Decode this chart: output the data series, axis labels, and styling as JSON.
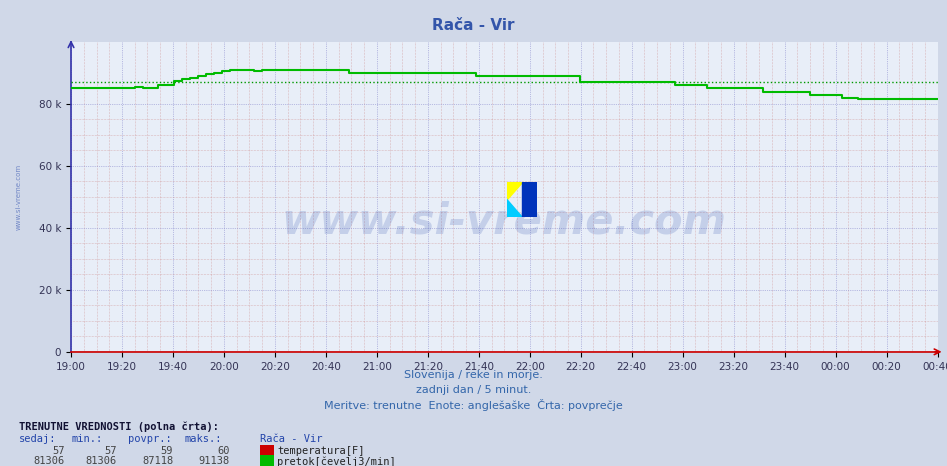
{
  "title": "Rača - Vir",
  "title_color": "#3355aa",
  "title_fontsize": 11,
  "bg_color": "#d0d8e8",
  "plot_bg_color": "#e8eef8",
  "ylabel": "",
  "xlabel_line1": "Slovenija / reke in morje.",
  "xlabel_line2": "zadnji dan / 5 minut.",
  "xlabel_line3": "Meritve: trenutne  Enote: anglešaške  Črta: povprečje",
  "xlabel_color": "#3366aa",
  "xlabel_fontsize": 8,
  "yticks": [
    0,
    20000,
    40000,
    60000,
    80000
  ],
  "ytick_labels": [
    "0",
    "20 k",
    "40 k",
    "60 k",
    "80 k"
  ],
  "ymax": 100000,
  "xtick_labels": [
    "19:00",
    "19:20",
    "19:40",
    "20:00",
    "20:20",
    "20:40",
    "21:00",
    "21:20",
    "21:40",
    "22:00",
    "22:20",
    "22:40",
    "23:00",
    "23:20",
    "23:40",
    "00:00",
    "00:20",
    "00:40"
  ],
  "flow_color": "#00bb00",
  "flow_avg": 87118,
  "flow_avg_color": "#009900",
  "temp_color": "#cc0000",
  "watermark": "www.si-vreme.com",
  "watermark_color": "#2244aa",
  "watermark_fontsize": 30,
  "watermark_alpha": 0.18,
  "bottom_title": "TRENUTNE VREDNOSTI (polna črta):",
  "col_headers": [
    "sedaj:",
    "min.:",
    "povpr.:",
    "maks.:",
    "Rača - Vir"
  ],
  "row1": [
    "57",
    "57",
    "59",
    "60",
    "temperatura[F]"
  ],
  "row1_color": "#cc0000",
  "row2": [
    "81306",
    "81306",
    "87118",
    "91138",
    "pretok[čevelj3/min]"
  ],
  "row2_color": "#00bb00",
  "flow_data_y": [
    85000,
    85000,
    85000,
    85200,
    85200,
    85000,
    85000,
    85200,
    85400,
    85200,
    85000,
    86000,
    86000,
    87500,
    88000,
    88500,
    89000,
    89500,
    90000,
    90500,
    91000,
    91000,
    90800,
    90500,
    91000,
    91000,
    91000,
    91000,
    91000,
    91000,
    91000,
    91000,
    91000,
    91000,
    91000,
    90000,
    90000,
    90000,
    90000,
    90000,
    90000,
    90000,
    90000,
    90000,
    90000,
    90000,
    90000,
    90000,
    90000,
    90000,
    90000,
    89000,
    89000,
    89000,
    89000,
    89000,
    89000,
    89000,
    89000,
    89000,
    89000,
    89000,
    89000,
    89000,
    87000,
    87000,
    87000,
    87000,
    87000,
    87000,
    87000,
    87000,
    87000,
    87000,
    87000,
    87000,
    86000,
    86000,
    86000,
    86000,
    85000,
    85000,
    85000,
    85000,
    85000,
    85000,
    85000,
    84000,
    84000,
    84000,
    84000,
    84000,
    84000,
    83000,
    83000,
    83000,
    83000,
    82000,
    82000,
    81500,
    81500,
    81500,
    81500,
    81500,
    81500,
    81500,
    81500,
    81500,
    81500,
    81500
  ],
  "temp_data_y": [
    57,
    57,
    57,
    57,
    57,
    57,
    57,
    57,
    57,
    57,
    57,
    57,
    57,
    57,
    57,
    57,
    57,
    57,
    57,
    57,
    57,
    57,
    57,
    57,
    57,
    57,
    57,
    57,
    57,
    57,
    57,
    57,
    57,
    57,
    57,
    57,
    57,
    57,
    57,
    57,
    57,
    57,
    57,
    57,
    57,
    57,
    57,
    57,
    57,
    57,
    57,
    57,
    57,
    57,
    57,
    57,
    57,
    57,
    57,
    57,
    57,
    57,
    57,
    57,
    57,
    57,
    57,
    57,
    57,
    57,
    57,
    57,
    57,
    57,
    57,
    57,
    57,
    57,
    57,
    57,
    57,
    57,
    57,
    57,
    57,
    57,
    57,
    57,
    57,
    57,
    57,
    57,
    57,
    57,
    57,
    57,
    57,
    57,
    57,
    57,
    57,
    57,
    57,
    57,
    57,
    57,
    57,
    57,
    57,
    57
  ]
}
